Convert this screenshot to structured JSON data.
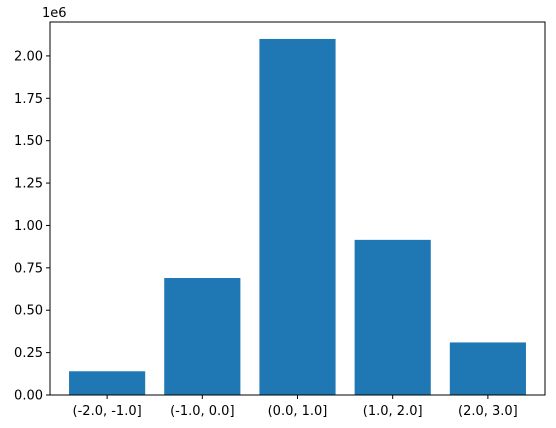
{
  "chart_data": {
    "type": "bar",
    "title": "",
    "xlabel": "",
    "ylabel": "",
    "categories": [
      "(-2.0, -1.0]",
      "(-1.0, 0.0]",
      "(0.0, 1.0]",
      "(1.0, 2.0]",
      "(2.0, 3.0]"
    ],
    "values": [
      140000,
      690000,
      2100000,
      915000,
      310000
    ],
    "ylim": [
      0,
      2200000
    ],
    "y_scale_label": "1e6",
    "y_ticks": [
      0,
      250000,
      500000,
      750000,
      1000000,
      1250000,
      1500000,
      1750000,
      2000000
    ],
    "y_tick_labels": [
      "0.00",
      "0.25",
      "0.50",
      "0.75",
      "1.00",
      "1.25",
      "1.50",
      "1.75",
      "2.00"
    ],
    "bar_color": "#1f77b4",
    "grid": false,
    "legend": "none"
  }
}
